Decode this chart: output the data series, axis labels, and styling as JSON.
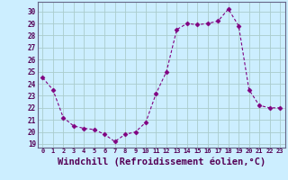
{
  "x": [
    0,
    1,
    2,
    3,
    4,
    5,
    6,
    7,
    8,
    9,
    10,
    11,
    12,
    13,
    14,
    15,
    16,
    17,
    18,
    19,
    20,
    21,
    22,
    23
  ],
  "y": [
    24.5,
    23.5,
    21.2,
    20.5,
    20.3,
    20.2,
    19.8,
    19.2,
    19.8,
    20.0,
    20.8,
    23.2,
    25.0,
    28.5,
    29.0,
    28.9,
    29.0,
    29.2,
    30.2,
    28.8,
    23.5,
    22.2,
    22.0,
    22.0
  ],
  "line_color": "#800080",
  "marker": "D",
  "marker_size": 2.5,
  "bg_color": "#cceeff",
  "grid_color": "#aacccc",
  "xlabel": "Windchill (Refroidissement éolien,°C)",
  "xlabel_fontsize": 7.5,
  "ylabel_ticks": [
    19,
    20,
    21,
    22,
    23,
    24,
    25,
    26,
    27,
    28,
    29,
    30
  ],
  "xtick_labels": [
    "0",
    "1",
    "2",
    "3",
    "4",
    "5",
    "6",
    "7",
    "8",
    "9",
    "10",
    "11",
    "12",
    "13",
    "14",
    "15",
    "16",
    "17",
    "18",
    "19",
    "20",
    "21",
    "22",
    "23"
  ],
  "ylim": [
    18.7,
    30.8
  ],
  "xlim": [
    -0.5,
    23.5
  ]
}
